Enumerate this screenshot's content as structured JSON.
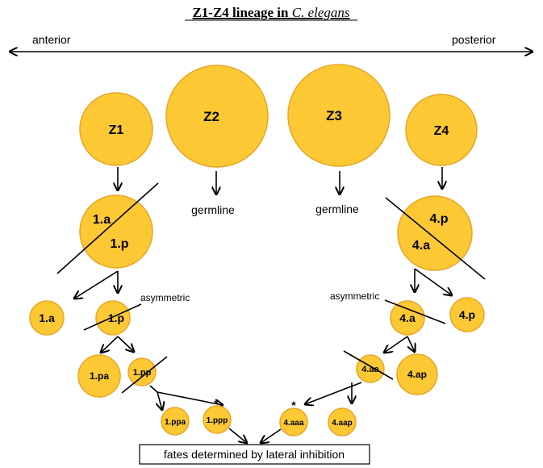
{
  "title": {
    "main": "Z1-Z4 lineage in ",
    "species": "C. elegans"
  },
  "axis": {
    "left_label": "anterior",
    "right_label": "posterior"
  },
  "cells": {
    "z1": "Z1",
    "z2": "Z2",
    "z3": "Z3",
    "z4": "Z4",
    "z1_split_a": "1.a",
    "z1_split_p": "1.p",
    "z4_split_p": "4.p",
    "z4_split_a": "4.a",
    "c1a": "1.a",
    "c1p": "1.p",
    "c4a": "4.a",
    "c4p": "4.p",
    "c1pa": "1.pa",
    "c1pp": "1.pp",
    "c4aa": "4.aa",
    "c4ap": "4.ap",
    "c1ppa": "1.ppa",
    "c1ppp": "1.ppp",
    "c4aaa": "4.aaa",
    "c4aap": "4.aap"
  },
  "labels": {
    "germline_left": "germline",
    "germline_right": "germline",
    "asymmetric_left": "asymmetric",
    "asymmetric_right": "asymmetric",
    "star_left": "*",
    "star_right": "*",
    "fates": "fates determined by lateral inhibition"
  }
}
